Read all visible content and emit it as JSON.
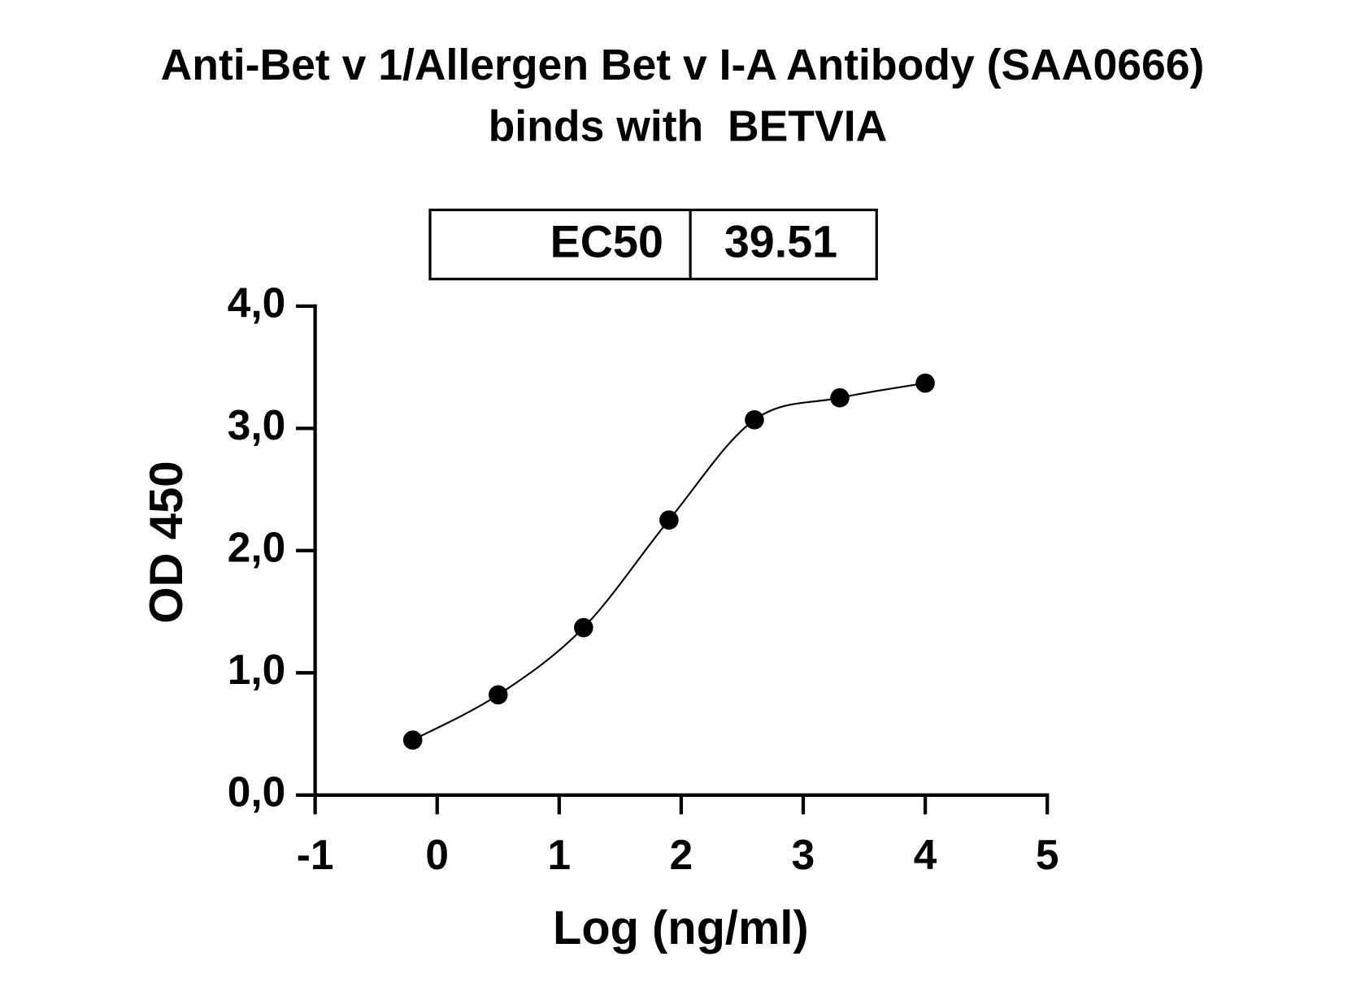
{
  "chart_data": {
    "type": "scatter",
    "title": "Anti-Bet v 1/Allergen Bet v I-A Antibody (SAA0666)",
    "subtitle": "binds with  BETVIA",
    "ec50_table": {
      "label": "EC50",
      "value": "39.51"
    },
    "x_label": "Log (ng/ml)",
    "y_label": "OD 450",
    "x": [
      -0.2,
      0.5,
      1.2,
      1.9,
      2.6,
      3.3,
      4.0
    ],
    "series": [
      {
        "name": "BETVIA",
        "color": "#000000",
        "values": [
          0.45,
          0.82,
          1.37,
          2.25,
          3.07,
          3.25,
          3.37
        ]
      }
    ],
    "xlim": [
      -1,
      5
    ],
    "xticks": [
      -1,
      0,
      1,
      2,
      3,
      4,
      5
    ],
    "ylim": [
      0,
      4
    ],
    "yticks": [
      {
        "value": 0,
        "label": "0,0"
      },
      {
        "value": 1,
        "label": "1,0"
      },
      {
        "value": 2,
        "label": "2,0"
      },
      {
        "value": 3,
        "label": "3,0"
      },
      {
        "value": 4,
        "label": "4,0"
      }
    ],
    "grid": false
  }
}
